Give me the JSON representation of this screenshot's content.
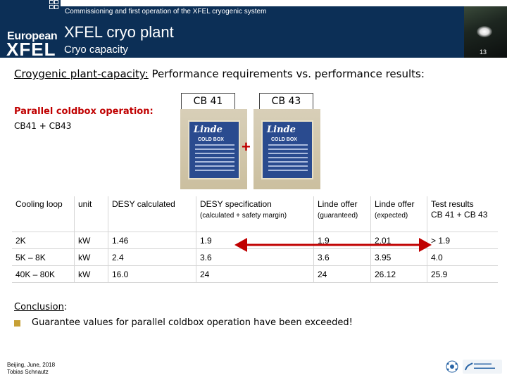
{
  "header": {
    "suptitle": "Commissioning and first operation of the XFEL cryogenic system",
    "title": "XFEL cryo plant",
    "subtitle": "Cryo capacity",
    "page_number": "13",
    "logo_line1": "European",
    "logo_line2": "XFEL"
  },
  "heading": {
    "underlined": "Croygenic plant-capacity:",
    "rest": " Performance requirements vs. performance results:"
  },
  "left": {
    "parallel": "Parallel coldbox operation:",
    "combo": "CB41 + CB43"
  },
  "coldboxes": [
    {
      "label": "CB 41",
      "plate_brand": "Linde",
      "plate_title": "COLD BOX"
    },
    {
      "label": "CB 43",
      "plate_brand": "Linde",
      "plate_title": "COLD BOX"
    }
  ],
  "plus": "+",
  "table": {
    "headers": [
      {
        "main": "Cooling loop",
        "sub": ""
      },
      {
        "main": "unit",
        "sub": ""
      },
      {
        "main": "DESY calculated",
        "sub": ""
      },
      {
        "main": "DESY specification",
        "sub": "(calculated + safety margin)"
      },
      {
        "main": "Linde offer",
        "sub": "(guaranteed)"
      },
      {
        "main": "Linde offer",
        "sub": "(expected)"
      },
      {
        "main": "Test results",
        "sub": "CB 41 + CB 43"
      }
    ],
    "rows": [
      [
        "2K",
        "kW",
        "1.46",
        "1.9",
        "1.9",
        "2.01",
        "> 1.9"
      ],
      [
        "5K – 8K",
        "kW",
        "2.4",
        "3.6",
        "3.6",
        "3.95",
        "4.0"
      ],
      [
        "40K – 80K",
        "kW",
        "16.0",
        "24",
        "24",
        "26.12",
        "25.9"
      ]
    ]
  },
  "conclusion": {
    "label": "Conclusion",
    "colon": ":",
    "bullet": "Guarantee values for parallel coldbox operation have been exceeded!"
  },
  "footer": {
    "line1": "Beijing, June, 2018",
    "line2": "Tobias Schnautz"
  },
  "colors": {
    "band": "#0c2f56",
    "accent_red": "#c00000",
    "bullet": "#c7a035"
  }
}
